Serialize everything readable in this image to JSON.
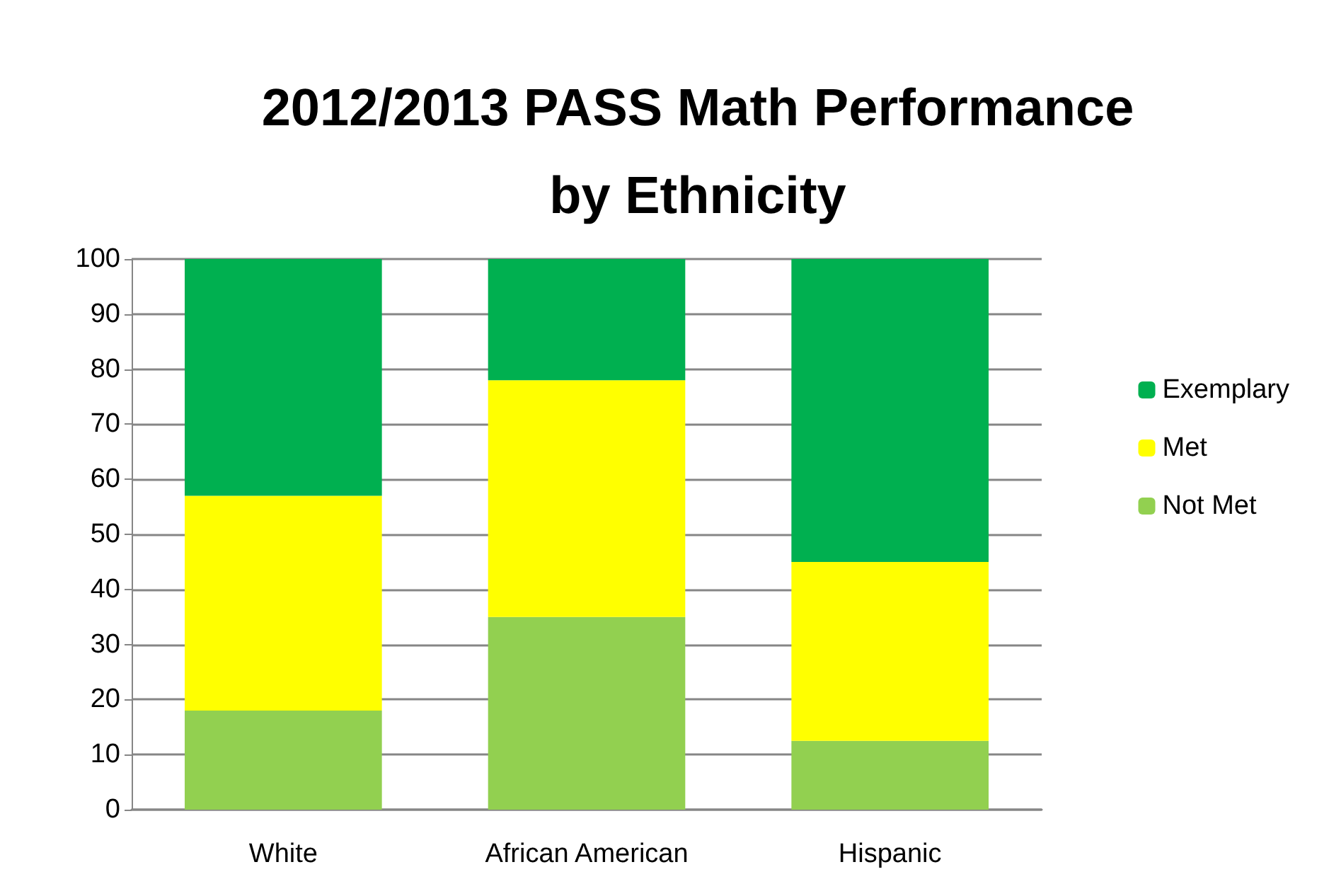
{
  "chart_data": {
    "type": "bar",
    "title": "2012/2013 PASS Math Performance\nby Ethnicity",
    "categories": [
      "White",
      "African American",
      "Hispanic"
    ],
    "stacked": true,
    "series": [
      {
        "name": "Not Met",
        "color": "#92d050",
        "values": [
          18,
          35,
          12.5
        ]
      },
      {
        "name": "Met",
        "color": "#ffff00",
        "values": [
          39,
          43,
          32.5
        ]
      },
      {
        "name": "Exemplary",
        "color": "#00b050",
        "values": [
          43,
          22,
          55
        ]
      }
    ],
    "ylim": [
      0,
      100
    ],
    "yticks": [
      0,
      10,
      20,
      30,
      40,
      50,
      60,
      70,
      80,
      90,
      100
    ],
    "grid": "y",
    "legend": "right"
  }
}
